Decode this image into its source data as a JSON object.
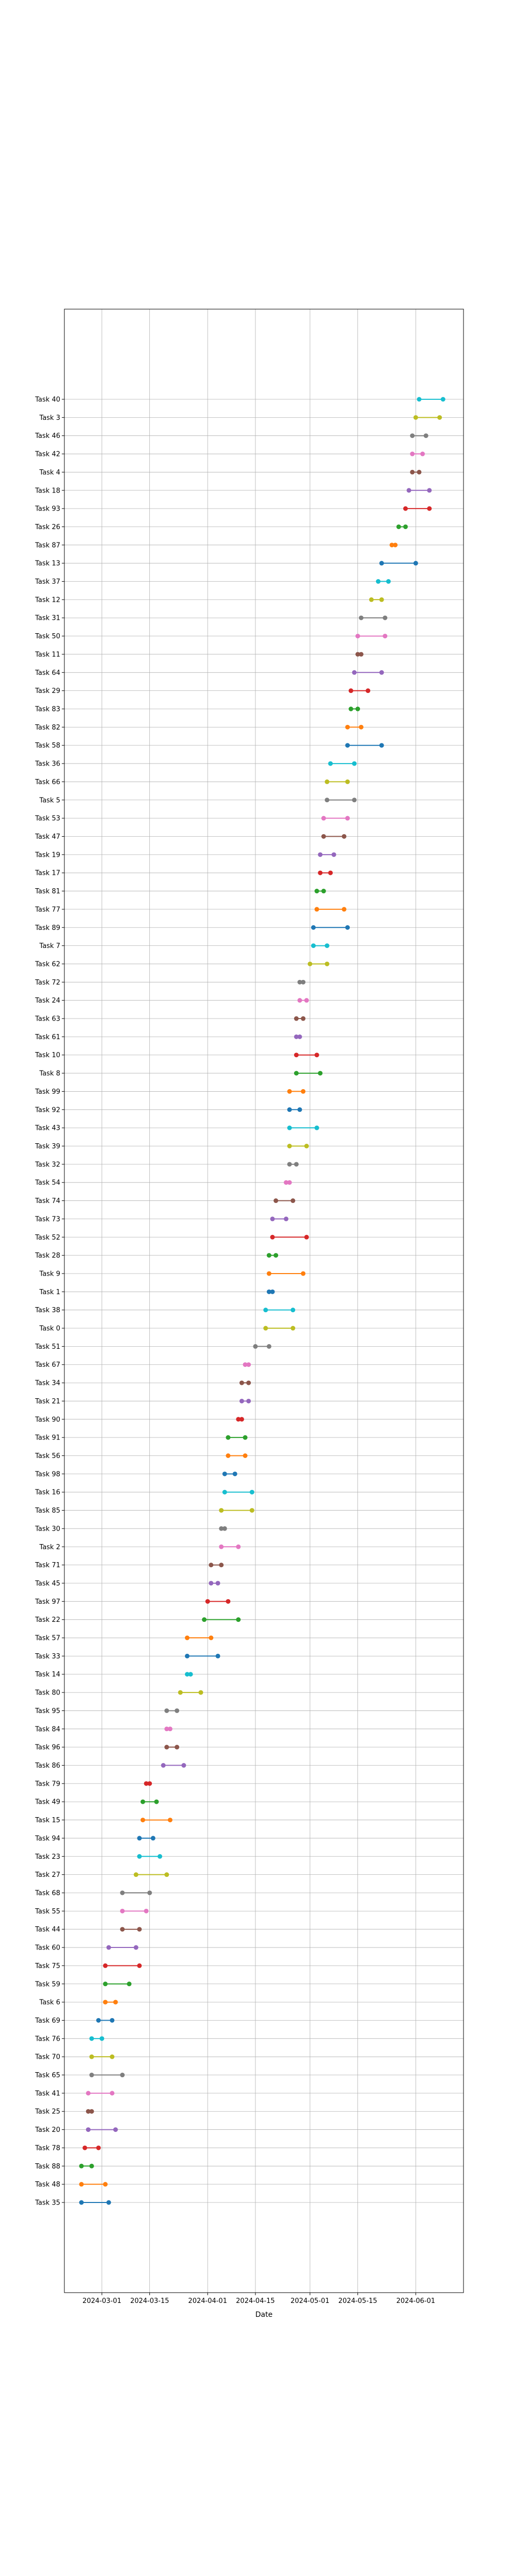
{
  "chart_data": {
    "type": "dumbbell",
    "xlabel": "Date",
    "ylabel": "",
    "title": "",
    "x_ticks": [
      "2024-03-01",
      "2024-03-15",
      "2024-04-01",
      "2024-04-15",
      "2024-05-01",
      "2024-05-15",
      "2024-06-01"
    ],
    "xlim": [
      "2024-02-19",
      "2024-06-15"
    ],
    "grid": true,
    "palette": [
      "#1f77b4",
      "#ff7f0e",
      "#2ca02c",
      "#d62728",
      "#9467bd",
      "#8c564b",
      "#e377c2",
      "#7f7f7f",
      "#bcbd22",
      "#17becf"
    ],
    "tasks": [
      {
        "name": "Task 40",
        "start": "2024-06-02",
        "end": "2024-06-09"
      },
      {
        "name": "Task 3",
        "start": "2024-06-01",
        "end": "2024-06-08"
      },
      {
        "name": "Task 46",
        "start": "2024-05-31",
        "end": "2024-06-04"
      },
      {
        "name": "Task 42",
        "start": "2024-05-31",
        "end": "2024-06-03"
      },
      {
        "name": "Task 4",
        "start": "2024-05-31",
        "end": "2024-06-02"
      },
      {
        "name": "Task 18",
        "start": "2024-05-30",
        "end": "2024-06-05"
      },
      {
        "name": "Task 93",
        "start": "2024-05-29",
        "end": "2024-06-05"
      },
      {
        "name": "Task 26",
        "start": "2024-05-27",
        "end": "2024-05-29"
      },
      {
        "name": "Task 87",
        "start": "2024-05-25",
        "end": "2024-05-26"
      },
      {
        "name": "Task 13",
        "start": "2024-05-22",
        "end": "2024-06-01"
      },
      {
        "name": "Task 37",
        "start": "2024-05-21",
        "end": "2024-05-24"
      },
      {
        "name": "Task 12",
        "start": "2024-05-19",
        "end": "2024-05-22"
      },
      {
        "name": "Task 31",
        "start": "2024-05-16",
        "end": "2024-05-23"
      },
      {
        "name": "Task 50",
        "start": "2024-05-15",
        "end": "2024-05-23"
      },
      {
        "name": "Task 11",
        "start": "2024-05-15",
        "end": "2024-05-16"
      },
      {
        "name": "Task 64",
        "start": "2024-05-14",
        "end": "2024-05-22"
      },
      {
        "name": "Task 29",
        "start": "2024-05-13",
        "end": "2024-05-18"
      },
      {
        "name": "Task 83",
        "start": "2024-05-13",
        "end": "2024-05-15"
      },
      {
        "name": "Task 82",
        "start": "2024-05-12",
        "end": "2024-05-16"
      },
      {
        "name": "Task 58",
        "start": "2024-05-12",
        "end": "2024-05-22"
      },
      {
        "name": "Task 36",
        "start": "2024-05-07",
        "end": "2024-05-14"
      },
      {
        "name": "Task 66",
        "start": "2024-05-06",
        "end": "2024-05-12"
      },
      {
        "name": "Task 5",
        "start": "2024-05-06",
        "end": "2024-05-14"
      },
      {
        "name": "Task 53",
        "start": "2024-05-05",
        "end": "2024-05-12"
      },
      {
        "name": "Task 47",
        "start": "2024-05-05",
        "end": "2024-05-11"
      },
      {
        "name": "Task 19",
        "start": "2024-05-04",
        "end": "2024-05-08"
      },
      {
        "name": "Task 17",
        "start": "2024-05-04",
        "end": "2024-05-07"
      },
      {
        "name": "Task 81",
        "start": "2024-05-03",
        "end": "2024-05-05"
      },
      {
        "name": "Task 77",
        "start": "2024-05-03",
        "end": "2024-05-11"
      },
      {
        "name": "Task 89",
        "start": "2024-05-02",
        "end": "2024-05-12"
      },
      {
        "name": "Task 7",
        "start": "2024-05-02",
        "end": "2024-05-06"
      },
      {
        "name": "Task 62",
        "start": "2024-05-01",
        "end": "2024-05-06"
      },
      {
        "name": "Task 72",
        "start": "2024-04-28",
        "end": "2024-04-29"
      },
      {
        "name": "Task 24",
        "start": "2024-04-28",
        "end": "2024-04-30"
      },
      {
        "name": "Task 63",
        "start": "2024-04-27",
        "end": "2024-04-29"
      },
      {
        "name": "Task 61",
        "start": "2024-04-27",
        "end": "2024-04-28"
      },
      {
        "name": "Task 10",
        "start": "2024-04-27",
        "end": "2024-05-03"
      },
      {
        "name": "Task 8",
        "start": "2024-04-27",
        "end": "2024-05-04"
      },
      {
        "name": "Task 99",
        "start": "2024-04-25",
        "end": "2024-04-29"
      },
      {
        "name": "Task 92",
        "start": "2024-04-25",
        "end": "2024-04-28"
      },
      {
        "name": "Task 43",
        "start": "2024-04-25",
        "end": "2024-05-03"
      },
      {
        "name": "Task 39",
        "start": "2024-04-25",
        "end": "2024-04-30"
      },
      {
        "name": "Task 32",
        "start": "2024-04-25",
        "end": "2024-04-27"
      },
      {
        "name": "Task 54",
        "start": "2024-04-24",
        "end": "2024-04-25"
      },
      {
        "name": "Task 74",
        "start": "2024-04-21",
        "end": "2024-04-26"
      },
      {
        "name": "Task 73",
        "start": "2024-04-20",
        "end": "2024-04-24"
      },
      {
        "name": "Task 52",
        "start": "2024-04-20",
        "end": "2024-04-30"
      },
      {
        "name": "Task 28",
        "start": "2024-04-19",
        "end": "2024-04-21"
      },
      {
        "name": "Task 9",
        "start": "2024-04-19",
        "end": "2024-04-29"
      },
      {
        "name": "Task 1",
        "start": "2024-04-19",
        "end": "2024-04-20"
      },
      {
        "name": "Task 38",
        "start": "2024-04-18",
        "end": "2024-04-26"
      },
      {
        "name": "Task 0",
        "start": "2024-04-18",
        "end": "2024-04-26"
      },
      {
        "name": "Task 51",
        "start": "2024-04-15",
        "end": "2024-04-19"
      },
      {
        "name": "Task 67",
        "start": "2024-04-12",
        "end": "2024-04-13"
      },
      {
        "name": "Task 34",
        "start": "2024-04-11",
        "end": "2024-04-13"
      },
      {
        "name": "Task 21",
        "start": "2024-04-11",
        "end": "2024-04-13"
      },
      {
        "name": "Task 90",
        "start": "2024-04-10",
        "end": "2024-04-11"
      },
      {
        "name": "Task 91",
        "start": "2024-04-07",
        "end": "2024-04-12"
      },
      {
        "name": "Task 56",
        "start": "2024-04-07",
        "end": "2024-04-12"
      },
      {
        "name": "Task 98",
        "start": "2024-04-06",
        "end": "2024-04-09"
      },
      {
        "name": "Task 16",
        "start": "2024-04-06",
        "end": "2024-04-14"
      },
      {
        "name": "Task 85",
        "start": "2024-04-05",
        "end": "2024-04-14"
      },
      {
        "name": "Task 30",
        "start": "2024-04-05",
        "end": "2024-04-06"
      },
      {
        "name": "Task 2",
        "start": "2024-04-05",
        "end": "2024-04-10"
      },
      {
        "name": "Task 71",
        "start": "2024-04-02",
        "end": "2024-04-05"
      },
      {
        "name": "Task 45",
        "start": "2024-04-02",
        "end": "2024-04-04"
      },
      {
        "name": "Task 97",
        "start": "2024-04-01",
        "end": "2024-04-07"
      },
      {
        "name": "Task 22",
        "start": "2024-03-31",
        "end": "2024-04-10"
      },
      {
        "name": "Task 57",
        "start": "2024-03-26",
        "end": "2024-04-02"
      },
      {
        "name": "Task 33",
        "start": "2024-03-26",
        "end": "2024-04-04"
      },
      {
        "name": "Task 14",
        "start": "2024-03-26",
        "end": "2024-03-27"
      },
      {
        "name": "Task 80",
        "start": "2024-03-24",
        "end": "2024-03-30"
      },
      {
        "name": "Task 95",
        "start": "2024-03-20",
        "end": "2024-03-23"
      },
      {
        "name": "Task 84",
        "start": "2024-03-20",
        "end": "2024-03-21"
      },
      {
        "name": "Task 96",
        "start": "2024-03-20",
        "end": "2024-03-23"
      },
      {
        "name": "Task 86",
        "start": "2024-03-19",
        "end": "2024-03-25"
      },
      {
        "name": "Task 79",
        "start": "2024-03-14",
        "end": "2024-03-15"
      },
      {
        "name": "Task 49",
        "start": "2024-03-13",
        "end": "2024-03-17"
      },
      {
        "name": "Task 15",
        "start": "2024-03-13",
        "end": "2024-03-21"
      },
      {
        "name": "Task 94",
        "start": "2024-03-12",
        "end": "2024-03-16"
      },
      {
        "name": "Task 23",
        "start": "2024-03-12",
        "end": "2024-03-18"
      },
      {
        "name": "Task 27",
        "start": "2024-03-11",
        "end": "2024-03-20"
      },
      {
        "name": "Task 68",
        "start": "2024-03-07",
        "end": "2024-03-15"
      },
      {
        "name": "Task 55",
        "start": "2024-03-07",
        "end": "2024-03-14"
      },
      {
        "name": "Task 44",
        "start": "2024-03-07",
        "end": "2024-03-12"
      },
      {
        "name": "Task 60",
        "start": "2024-03-03",
        "end": "2024-03-11"
      },
      {
        "name": "Task 75",
        "start": "2024-03-02",
        "end": "2024-03-12"
      },
      {
        "name": "Task 59",
        "start": "2024-03-02",
        "end": "2024-03-09"
      },
      {
        "name": "Task 6",
        "start": "2024-03-02",
        "end": "2024-03-05"
      },
      {
        "name": "Task 69",
        "start": "2024-02-29",
        "end": "2024-03-04"
      },
      {
        "name": "Task 76",
        "start": "2024-02-27",
        "end": "2024-03-01"
      },
      {
        "name": "Task 70",
        "start": "2024-02-27",
        "end": "2024-03-04"
      },
      {
        "name": "Task 65",
        "start": "2024-02-27",
        "end": "2024-03-07"
      },
      {
        "name": "Task 41",
        "start": "2024-02-26",
        "end": "2024-03-04"
      },
      {
        "name": "Task 25",
        "start": "2024-02-26",
        "end": "2024-02-27"
      },
      {
        "name": "Task 20",
        "start": "2024-02-26",
        "end": "2024-03-05"
      },
      {
        "name": "Task 78",
        "start": "2024-02-25",
        "end": "2024-02-29"
      },
      {
        "name": "Task 88",
        "start": "2024-02-24",
        "end": "2024-02-27"
      },
      {
        "name": "Task 48",
        "start": "2024-02-24",
        "end": "2024-03-02"
      },
      {
        "name": "Task 35",
        "start": "2024-02-24",
        "end": "2024-03-03"
      }
    ]
  }
}
